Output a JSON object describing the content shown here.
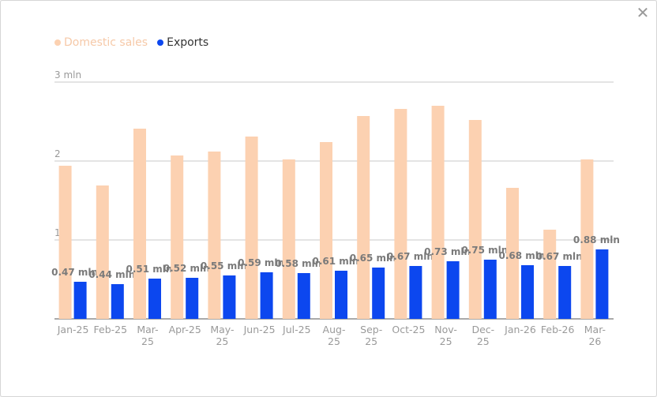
{
  "dialog": {
    "close_icon": "close-icon",
    "close_glyph": "✕"
  },
  "legend": [
    {
      "label": "Domestic sales",
      "color": "#fcd1b1",
      "text_color": "#f6c9a8"
    },
    {
      "label": "Exports",
      "color": "#0c47ef",
      "text_color": "#333333"
    }
  ],
  "chart_data": {
    "type": "bar",
    "categories": [
      "Jan-25",
      "Feb-25",
      "Mar-25",
      "Apr-25",
      "May-25",
      "Jun-25",
      "Jul-25",
      "Aug-25",
      "Sep-25",
      "Oct-25",
      "Nov-25",
      "Dec-25",
      "Jan-26",
      "Feb-26",
      "Mar-26"
    ],
    "category_lines": [
      [
        "Jan-25"
      ],
      [
        "Feb-25"
      ],
      [
        "Mar-",
        "25"
      ],
      [
        "Apr-25"
      ],
      [
        "May-",
        "25"
      ],
      [
        "Jun-25"
      ],
      [
        "Jul-25"
      ],
      [
        "Aug-",
        "25"
      ],
      [
        "Sep-",
        "25"
      ],
      [
        "Oct-25"
      ],
      [
        "Nov-",
        "25"
      ],
      [
        "Dec-",
        "25"
      ],
      [
        "Jan-26"
      ],
      [
        "Feb-26"
      ],
      [
        "Mar-",
        "26"
      ]
    ],
    "series": [
      {
        "name": "Domestic sales",
        "color": "#fcd1b1",
        "values": [
          1.94,
          1.69,
          2.41,
          2.07,
          2.12,
          2.31,
          2.02,
          2.24,
          2.57,
          2.66,
          2.7,
          2.52,
          1.66,
          1.13,
          2.02
        ]
      },
      {
        "name": "Exports",
        "color": "#0c47ef",
        "values": [
          0.47,
          0.44,
          0.51,
          0.52,
          0.55,
          0.59,
          0.58,
          0.61,
          0.65,
          0.67,
          0.73,
          0.75,
          0.68,
          0.67,
          0.88
        ],
        "data_labels": [
          "0.47 mln",
          "0.44 mln",
          "0.51 mln",
          "0.52 mln",
          "0.55 mln",
          "0.59 mln",
          "0.58 mln",
          "0.61 mln",
          "0.65 mln",
          "0.67 mln",
          "0.73 mln",
          "0.75 mln",
          "0.68 mln",
          "0.67 mln",
          "0.88 mln"
        ]
      }
    ],
    "y_ticks": [
      {
        "value": 1,
        "label": "1"
      },
      {
        "value": 2,
        "label": "2"
      },
      {
        "value": 3,
        "label": "3 mln"
      }
    ],
    "ylim": [
      0,
      3
    ],
    "grid": true,
    "legend_position": "top-left"
  }
}
